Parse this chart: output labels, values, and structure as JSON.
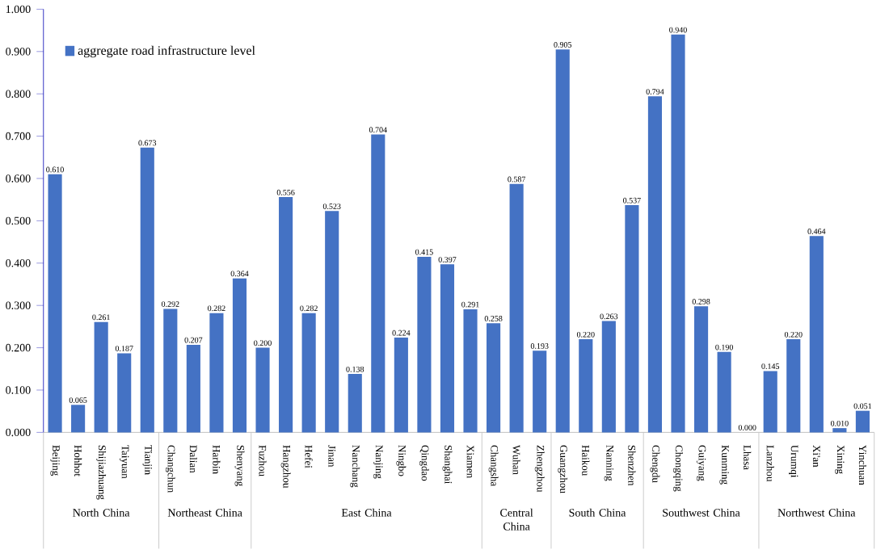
{
  "chart_data": {
    "type": "bar",
    "categories": [
      "Beijing",
      "Hohhot",
      "Shijiazhuang",
      "Taiyuan",
      "Tianjin",
      "Changchun",
      "Dalian",
      "Harbin",
      "Shenyang",
      "Fuzhou",
      "Hangzhou",
      "Hefei",
      "Jinan",
      "Nanchang",
      "Nanjing",
      "Ningbo",
      "Qingdao",
      "Shanghai",
      "Xiamen",
      "Changsha",
      "Wuhan",
      "Zhengzhou",
      "Guangzhou",
      "Haikou",
      "Nanning",
      "Shenzhen",
      "Chengdu",
      "Chongqing",
      "Guiyang",
      "Kunming",
      "Lhasa",
      "Lanzhou",
      "Urumqi",
      "Xi'an",
      "Xining",
      "Yinchuan"
    ],
    "series": [
      {
        "name": "aggregate road infrastructure level",
        "color": "#4472c4",
        "values": [
          0.61,
          0.065,
          0.261,
          0.187,
          0.673,
          0.292,
          0.207,
          0.282,
          0.364,
          0.2,
          0.556,
          0.282,
          0.523,
          0.138,
          0.704,
          0.224,
          0.415,
          0.397,
          0.291,
          0.258,
          0.587,
          0.193,
          0.905,
          0.22,
          0.263,
          0.537,
          0.794,
          0.94,
          0.298,
          0.19,
          0.0,
          0.145,
          0.22,
          0.464,
          0.01,
          0.051
        ]
      }
    ],
    "value_labels": [
      "0.610",
      "0.065",
      "0.261",
      "0.187",
      "0.673",
      "0.292",
      "0.207",
      "0.282",
      "0.364",
      "0.200",
      "0.556",
      "0.282",
      "0.523",
      "0.138",
      "0.704",
      "0.224",
      "0.415",
      "0.397",
      "0.291",
      "0.258",
      "0.587",
      "0.193",
      "0.905",
      "0.220",
      "0.263",
      "0.537",
      "0.794",
      "0.940",
      "0.298",
      "0.190",
      "0.000",
      "0.145",
      "0.220",
      "0.464",
      "0.010",
      "0.051"
    ],
    "ylim": [
      0,
      1
    ],
    "yticks": [
      {
        "value": 0,
        "label": "0.000"
      },
      {
        "value": 0.1,
        "label": "0.100"
      },
      {
        "value": 0.2,
        "label": "0.200"
      },
      {
        "value": 0.3,
        "label": "0.300"
      },
      {
        "value": 0.4,
        "label": "0.400"
      },
      {
        "value": 0.5,
        "label": "0.500"
      },
      {
        "value": 0.6,
        "label": "0.600"
      },
      {
        "value": 0.7,
        "label": "0.700"
      },
      {
        "value": 0.8,
        "label": "0.800"
      },
      {
        "value": 0.9,
        "label": "0.900"
      },
      {
        "value": 1,
        "label": "1.000"
      }
    ],
    "annotations": [
      "North China",
      "Northeast China",
      "East China",
      "Central China",
      "South China",
      "Southwest China",
      "Northwest China"
    ],
    "legend": "top left",
    "grid": false
  }
}
